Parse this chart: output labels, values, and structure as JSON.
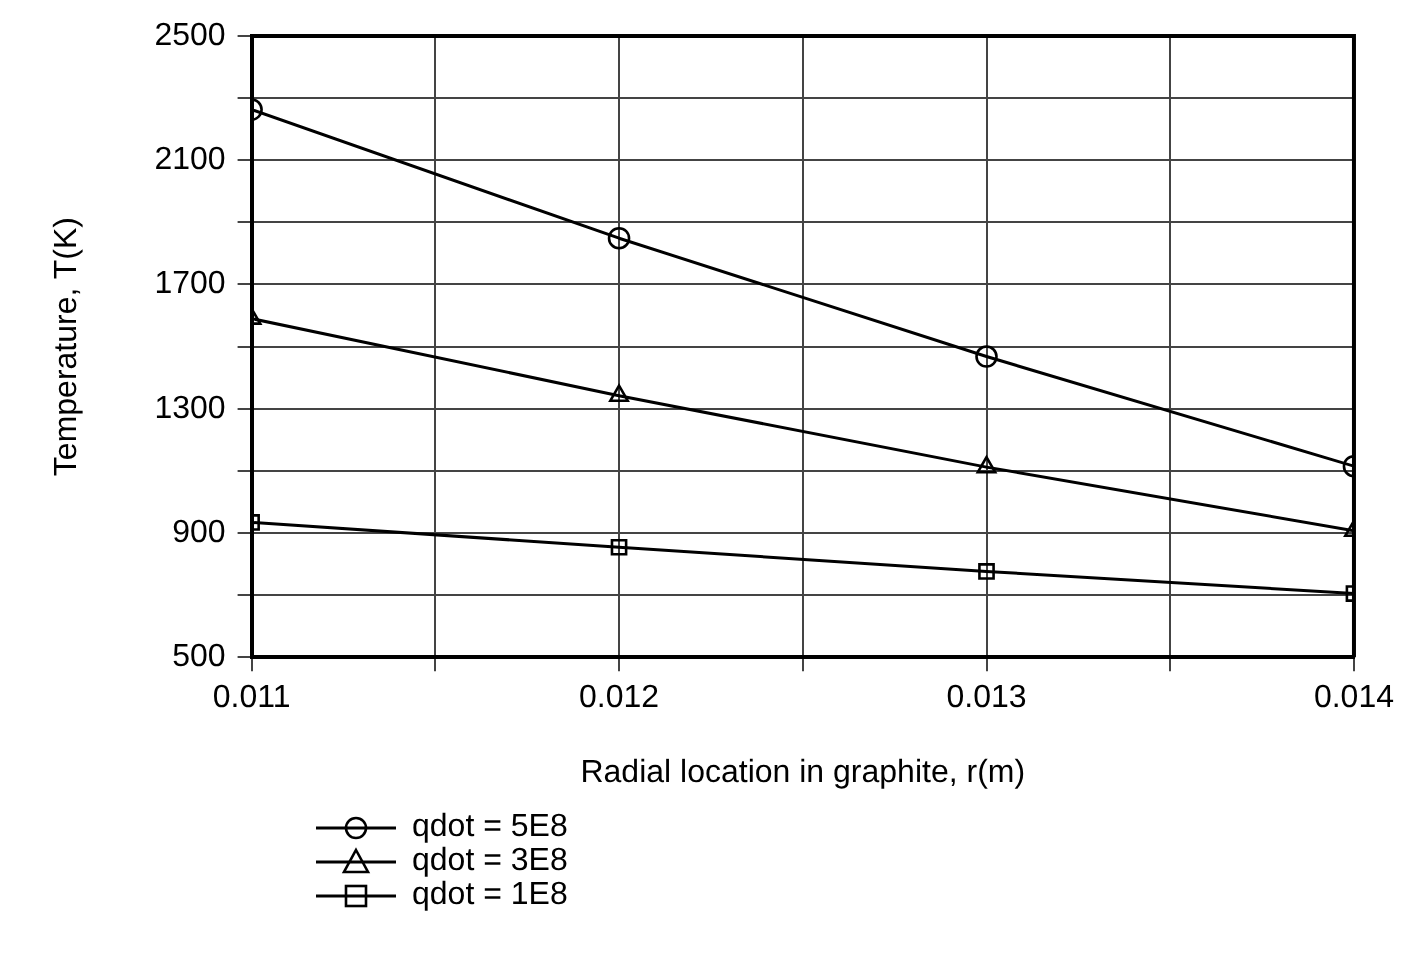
{
  "chart_data": {
    "type": "line",
    "xlabel": "Radial location in graphite, r(m)",
    "ylabel": "Temperature, T(K)",
    "x": [
      0.011,
      0.012,
      0.013,
      0.014
    ],
    "series": [
      {
        "name": "qdot = 5E8",
        "color": "#000000",
        "marker": "circle",
        "values": [
          2263,
          1849,
          1468,
          1115
        ]
      },
      {
        "name": "qdot = 3E8",
        "color": "#000000",
        "marker": "triangle",
        "values": [
          1590,
          1342,
          1112,
          907
        ]
      },
      {
        "name": "qdot = 1E8",
        "color": "#000000",
        "marker": "square",
        "values": [
          934,
          854,
          776,
          705
        ]
      }
    ],
    "xlim": [
      0.011,
      0.014
    ],
    "xticks": [
      0.011,
      {
        "value": 0.0115,
        "label": null
      },
      0.012,
      {
        "value": 0.0125,
        "label": null
      },
      0.013,
      {
        "value": 0.0135,
        "label": null
      },
      0.014
    ],
    "ylim": [
      500,
      2500
    ],
    "yticks": [
      500,
      {
        "value": 700,
        "label": null
      },
      900,
      {
        "value": 1100,
        "label": null
      },
      1300,
      {
        "value": 1500,
        "label": null
      },
      1700,
      {
        "value": 1900,
        "label": null
      },
      2100,
      {
        "value": 2300,
        "label": null
      },
      2500
    ],
    "grid": true,
    "legend": "bottom",
    "line_style": "solid"
  }
}
